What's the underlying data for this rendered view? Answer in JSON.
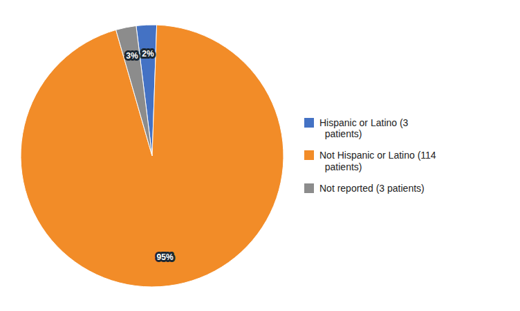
{
  "chart_data": {
    "type": "pie",
    "categories": [
      "Hispanic or Latino (3\n  patients)",
      "Not Hispanic or Latino (114\n  patients)",
      "Not reported (3 patients)"
    ],
    "values": [
      2.5,
      95,
      2.5
    ],
    "value_labels": [
      "2%",
      "95%",
      "3%"
    ],
    "colors": [
      "#4472C4",
      "#F28C28",
      "#8C8C8C"
    ],
    "data_labels": true,
    "legend": "right"
  }
}
